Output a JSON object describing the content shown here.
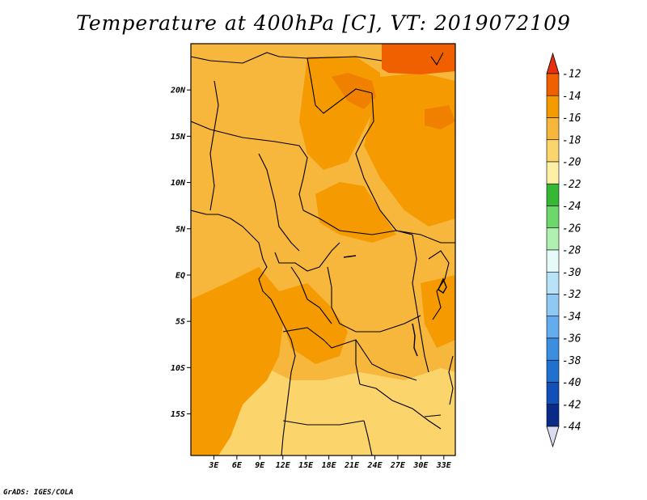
{
  "title": "Temperature at 400hPa [C], VT: 2019072109",
  "credit": "GrADS: IGES/COLA",
  "map": {
    "projection": "latlon",
    "lon_range": [
      0,
      34.5
    ],
    "lat_range": [
      -19.5,
      25
    ],
    "lat_ticks": [
      {
        "value": 20,
        "label": "20N"
      },
      {
        "value": 15,
        "label": "15N"
      },
      {
        "value": 10,
        "label": "10N"
      },
      {
        "value": 5,
        "label": "5N"
      },
      {
        "value": 0,
        "label": "EQ"
      },
      {
        "value": -5,
        "label": "5S"
      },
      {
        "value": -10,
        "label": "10S"
      },
      {
        "value": -15,
        "label": "15S"
      }
    ],
    "lon_ticks": [
      {
        "value": 3,
        "label": "3E"
      },
      {
        "value": 6,
        "label": "6E"
      },
      {
        "value": 9,
        "label": "9E"
      },
      {
        "value": 12,
        "label": "12E"
      },
      {
        "value": 15,
        "label": "15E"
      },
      {
        "value": 18,
        "label": "18E"
      },
      {
        "value": 21,
        "label": "21E"
      },
      {
        "value": 24,
        "label": "24E"
      },
      {
        "value": 27,
        "label": "27E"
      },
      {
        "value": 30,
        "label": "30E"
      },
      {
        "value": 33,
        "label": "33E"
      }
    ]
  },
  "colorbar": {
    "labels": [
      "-12",
      "-14",
      "-16",
      "-18",
      "-20",
      "-22",
      "-24",
      "-26",
      "-28",
      "-30",
      "-32",
      "-34",
      "-36",
      "-38",
      "-40",
      "-42",
      "-44"
    ],
    "colors": [
      "#e83010",
      "#f06000",
      "#f59a00",
      "#f7b63c",
      "#fbd56b",
      "#fdf0a6",
      "#36b836",
      "#6cd86c",
      "#b0f0b0",
      "#e6fafa",
      "#b8e2f8",
      "#90c8f4",
      "#64acf0",
      "#3c8ee0",
      "#2070d0",
      "#1050b8",
      "#0a2a88",
      "#0c1064"
    ],
    "upper_arrow_color": "#e83010",
    "lower_arrow_color": "#dcdcf0"
  }
}
